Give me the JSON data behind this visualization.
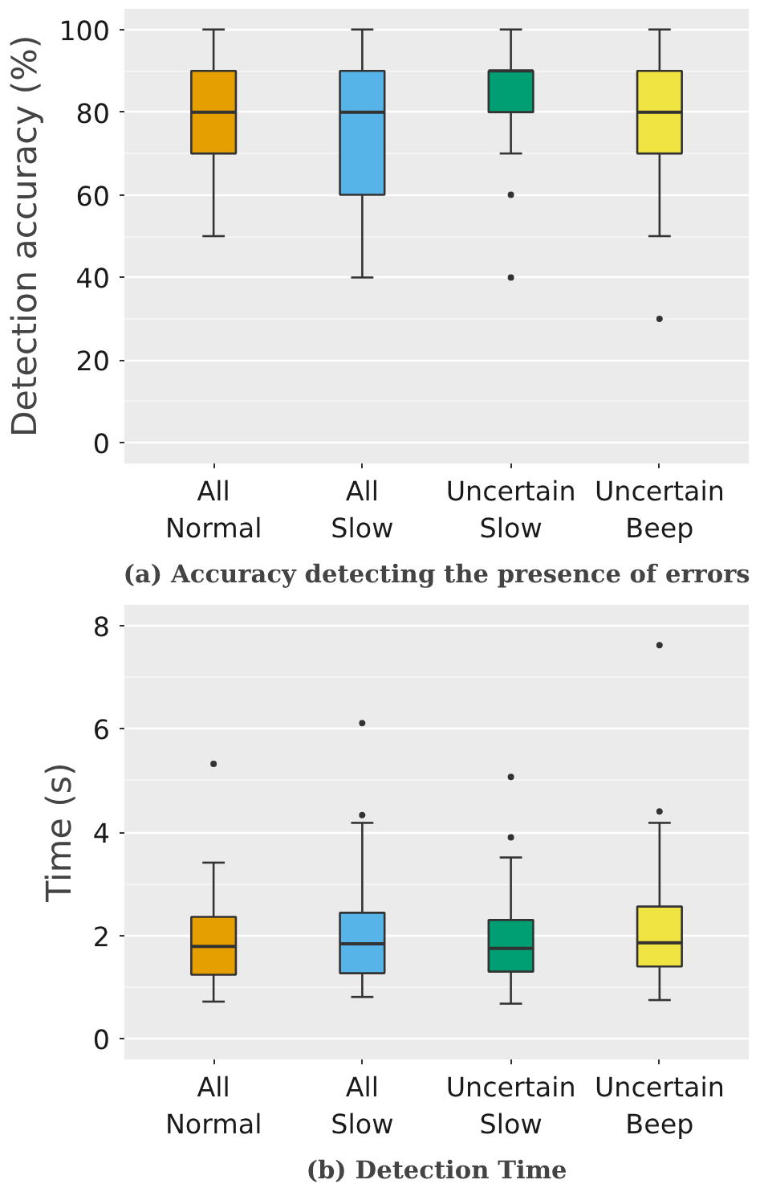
{
  "chart_data": [
    {
      "type": "box",
      "title": "(a) Accuracy detecting the presence of errors",
      "ylabel": "Detection accuracy (%)",
      "categories": [
        "All\nNormal",
        "All\nSlow",
        "Uncertain\nSlow",
        "Uncertain\nBeep"
      ],
      "colors": [
        "#e69f00",
        "#56b4e9",
        "#009e73",
        "#f0e442"
      ],
      "boxes": [
        {
          "low": 50,
          "q1": 70,
          "median": 80,
          "q3": 90,
          "high": 100
        },
        {
          "low": 40,
          "q1": 60,
          "median": 80,
          "q3": 90,
          "high": 100
        },
        {
          "low": 70,
          "q1": 80,
          "median": 90,
          "q3": 90,
          "high": 100,
          "outliers": [
            60,
            40
          ]
        },
        {
          "low": 50,
          "q1": 70,
          "median": 80,
          "q3": 90,
          "high": 100,
          "outliers": [
            30
          ]
        }
      ],
      "ylim": [
        -5,
        105
      ],
      "yticks": [
        0,
        20,
        40,
        60,
        80,
        100
      ],
      "grid": "y"
    },
    {
      "type": "box",
      "title": "(b) Detection Time",
      "ylabel": "Time (s)",
      "categories": [
        "All\nNormal",
        "All\nSlow",
        "Uncertain\nSlow",
        "Uncertain\nBeep"
      ],
      "colors": [
        "#e69f00",
        "#56b4e9",
        "#009e73",
        "#f0e442"
      ],
      "boxes": [
        {
          "low": 0.72,
          "q1": 1.24,
          "median": 1.79,
          "q3": 2.36,
          "high": 3.41,
          "outliers": [
            5.32
          ]
        },
        {
          "low": 0.81,
          "q1": 1.27,
          "median": 1.84,
          "q3": 2.44,
          "high": 4.18,
          "outliers": [
            4.33,
            6.11
          ]
        },
        {
          "low": 0.68,
          "q1": 1.3,
          "median": 1.75,
          "q3": 2.3,
          "high": 3.51,
          "outliers": [
            3.9,
            5.07
          ]
        },
        {
          "low": 0.75,
          "q1": 1.4,
          "median": 1.86,
          "q3": 2.56,
          "high": 4.18,
          "outliers": [
            4.4,
            7.62
          ]
        }
      ],
      "ylim": [
        -0.4,
        8.4
      ],
      "yticks": [
        0,
        2,
        4,
        6,
        8
      ],
      "grid": "y"
    }
  ]
}
